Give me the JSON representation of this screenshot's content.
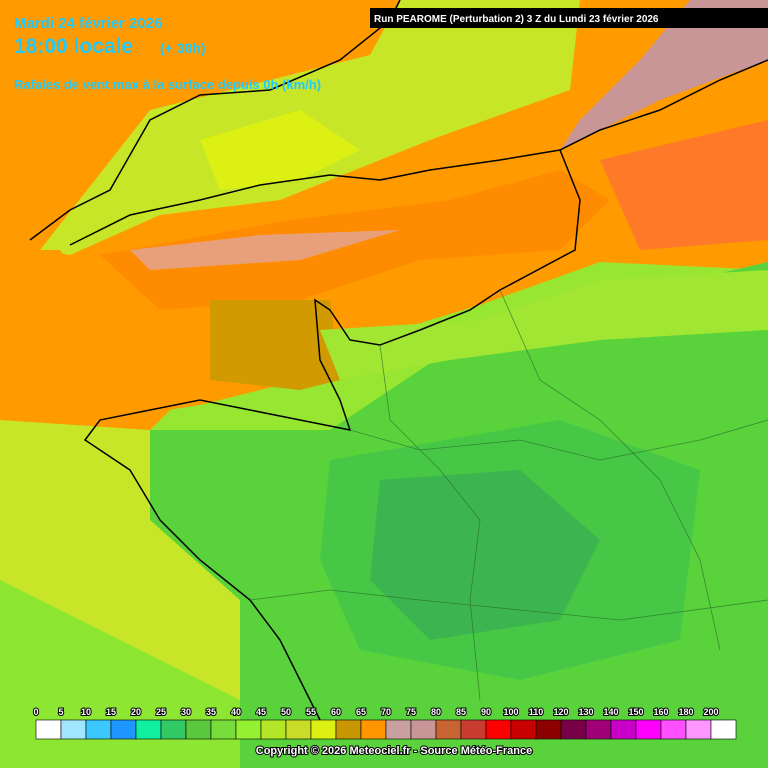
{
  "header": {
    "date": "Mardi 24 février 2026",
    "time": "18:00 locale",
    "lead": "(+ 38h)",
    "variable": "Rafales de vent max à la surface depuis 0h (km/h)",
    "run": "Run PEAROME (Perturbation 2) 3 Z du Lundi 23 février 2026"
  },
  "legend": {
    "labels": [
      0,
      5,
      10,
      15,
      20,
      25,
      30,
      35,
      40,
      45,
      50,
      55,
      60,
      65,
      70,
      75,
      80,
      85,
      90,
      100,
      110,
      120,
      130,
      140,
      150,
      160,
      180,
      200
    ],
    "colors": [
      "#ffffff",
      "#a0e6ff",
      "#3cc8ff",
      "#1e96ff",
      "#10f0a0",
      "#32c864",
      "#5ac83c",
      "#78dc3c",
      "#96f032",
      "#b4e628",
      "#c8dc28",
      "#dcf014",
      "#c89600",
      "#ff9600",
      "#c8a0a0",
      "#c89696",
      "#c86432",
      "#c83c32",
      "#ff0000",
      "#c80000",
      "#8c0000",
      "#780046",
      "#a00078",
      "#c800c8",
      "#ff00ff",
      "#ff50ff",
      "#ff96ff",
      "#ffffff"
    ]
  },
  "footer": {
    "copyright": "Copyright © 2026 Meteociel.fr - Source Météo-France"
  }
}
